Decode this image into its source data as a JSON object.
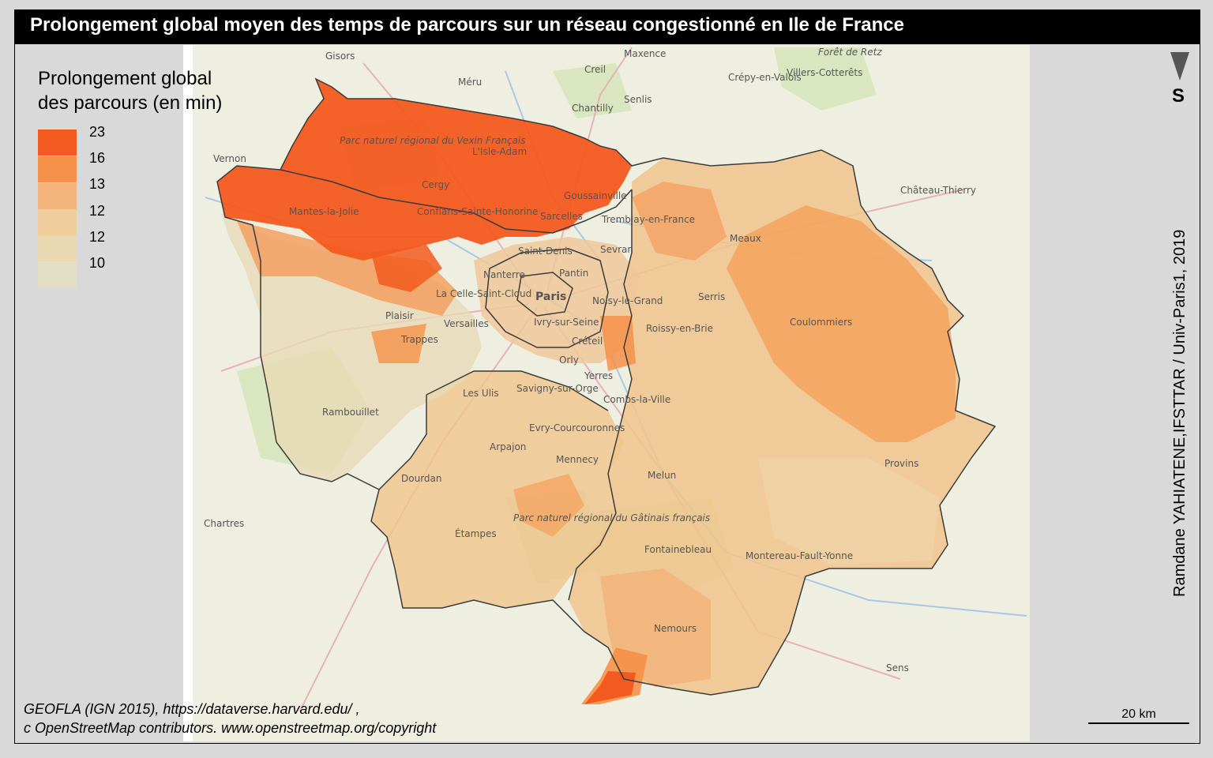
{
  "title": "Prolongement global moyen des temps de parcours sur un réseau congestionné en Ile de France",
  "legend": {
    "title_line1": "Prolongement global",
    "title_line2": "des parcours (en min)",
    "classes": [
      {
        "label": "23",
        "color": "#f35a1f"
      },
      {
        "label": "16",
        "color": "#f59148"
      },
      {
        "label": "13",
        "color": "#f2b47a"
      },
      {
        "label": "12",
        "color": "#efcd9c"
      },
      {
        "label": "12",
        "color": "#ead9b0"
      },
      {
        "label": "10",
        "color": "#e3dfc4"
      }
    ]
  },
  "north_label": "S",
  "credit": "Ramdane YAHIATENE,IFSTTAR / Univ-Paris1, 2019",
  "source_line1": "GEOFLA (IGN 2015), https://dataverse.harvard.edu/ ,",
  "source_line2": "c OpenStreetMap contributors. www.openstreetmap.org/copyright",
  "scale_label": "20 km",
  "places": {
    "gisors": "Gisors",
    "meru": "Méru",
    "creil": "Creil",
    "maxence": "Maxence",
    "senlis": "Senlis",
    "chantilly": "Chantilly",
    "crepy": "Crépy-en-Valois",
    "villers": "Villers-Cotterêts",
    "foret": "Forêt de Retz",
    "vernon": "Vernon",
    "lisle": "L'Isle-Adam",
    "vexin": "Parc naturel régional du Vexin Français",
    "cergy": "Cergy",
    "mantes": "Mantes-la-Jolie",
    "conflans": "Conflans-Sainte-Honorine",
    "sarcelles": "Sarcelles",
    "goussainville": "Goussainville",
    "tremblay": "Tremblay-en-France",
    "chateau": "Château-Thierry",
    "meaux": "Meaux",
    "saintdenis": "Saint-Denis",
    "nanterre": "Nanterre",
    "sevran": "Sevran",
    "pantin": "Pantin",
    "paris": "Paris",
    "lacelle": "La Celle-Saint-Cloud",
    "versailles": "Versailles",
    "noisy": "Noisy-le-Grand",
    "serris": "Serris",
    "plaisir": "Plaisir",
    "ivry": "Ivry-sur-Seine",
    "coulommiers": "Coulommiers",
    "trappes": "Trappes",
    "creteil": "Créteil",
    "roissy": "Roissy-en-Brie",
    "orly": "Orly",
    "lesulis": "Les Ulis",
    "savigny": "Savigny-sur-Orge",
    "combs": "Combs-la-Ville",
    "rambouillet": "Rambouillet",
    "evry": "Evry-Courcouronnes",
    "arpajon": "Arpajon",
    "mennecy": "Mennecy",
    "dourdan": "Dourdan",
    "melun": "Melun",
    "provins": "Provins",
    "chartres": "Chartres",
    "gatinais": "Parc naturel régional du Gâtinais français",
    "etampes": "Étampes",
    "fontainebleau": "Fontainebleau",
    "montereau": "Montereau-Fault-Yonne",
    "nemours": "Nemours",
    "sens": "Sens",
    "yerres": "Yerres"
  }
}
